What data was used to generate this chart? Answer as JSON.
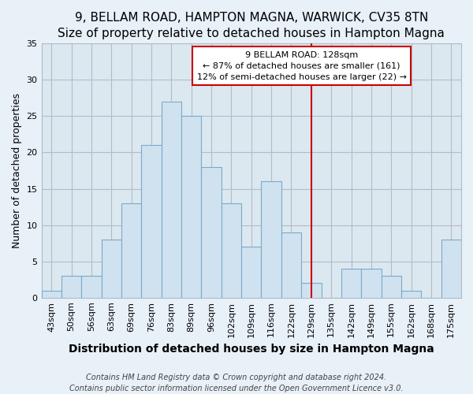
{
  "title": "9, BELLAM ROAD, HAMPTON MAGNA, WARWICK, CV35 8TN",
  "subtitle": "Size of property relative to detached houses in Hampton Magna",
  "xlabel": "Distribution of detached houses by size in Hampton Magna",
  "ylabel": "Number of detached properties",
  "bar_labels": [
    "43sqm",
    "50sqm",
    "56sqm",
    "63sqm",
    "69sqm",
    "76sqm",
    "83sqm",
    "89sqm",
    "96sqm",
    "102sqm",
    "109sqm",
    "116sqm",
    "122sqm",
    "129sqm",
    "135sqm",
    "142sqm",
    "149sqm",
    "155sqm",
    "162sqm",
    "168sqm",
    "175sqm"
  ],
  "bar_values": [
    1,
    3,
    3,
    8,
    13,
    21,
    27,
    25,
    18,
    13,
    7,
    16,
    9,
    2,
    0,
    4,
    4,
    3,
    1,
    0,
    8
  ],
  "bar_color": "#d0e2f0",
  "bar_edge_color": "#7aaaca",
  "vline_x_index": 13,
  "vline_color": "#cc0000",
  "annotation_title": "9 BELLAM ROAD: 128sqm",
  "annotation_line1": "← 87% of detached houses are smaller (161)",
  "annotation_line2": "12% of semi-detached houses are larger (22) →",
  "annotation_box_edge": "#cc0000",
  "ylim": [
    0,
    35
  ],
  "yticks": [
    0,
    5,
    10,
    15,
    20,
    25,
    30,
    35
  ],
  "footer1": "Contains HM Land Registry data © Crown copyright and database right 2024.",
  "footer2": "Contains public sector information licensed under the Open Government Licence v3.0.",
  "plot_bg_color": "#dce8f0",
  "fig_bg_color": "#e8f0f8",
  "title_fontsize": 11,
  "xlabel_fontsize": 10,
  "ylabel_fontsize": 9,
  "tick_fontsize": 8,
  "annotation_fontsize": 8,
  "footer_fontsize": 7
}
